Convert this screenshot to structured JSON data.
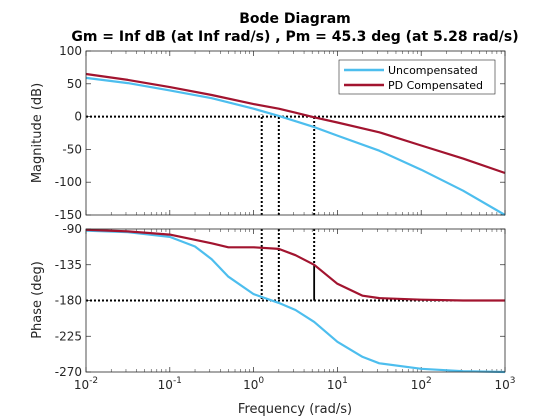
{
  "chart_data": {
    "type": "line",
    "title": "Bode Diagram",
    "subtitle": "Gm = Inf dB (at Inf rad/s) ,  Pm = 45.3 deg (at 5.28 rad/s)",
    "xlabel": "Frequency  (rad/s)",
    "x_scale": "log",
    "xlim": [
      0.01,
      1000
    ],
    "x_ticks": [
      0.01,
      0.1,
      1,
      10,
      100,
      1000
    ],
    "x_tick_labels": [
      {
        "base": "10",
        "exp": "-2"
      },
      {
        "base": "10",
        "exp": "-1"
      },
      {
        "base": "10",
        "exp": "0"
      },
      {
        "base": "10",
        "exp": "1"
      },
      {
        "base": "10",
        "exp": "2"
      },
      {
        "base": "10",
        "exp": "3"
      }
    ],
    "legend": {
      "placement": "top-right",
      "entries": [
        "Uncompensated",
        "PD Compensated"
      ]
    },
    "colors": {
      "uncompensated": "#4dbeee",
      "pd": "#a2142f",
      "axis": "#262626",
      "marker": "#000000"
    },
    "magnitude": {
      "ylabel": "Magnitude (dB)",
      "ylim": [
        -150,
        100
      ],
      "y_ticks": [
        -150,
        -100,
        -50,
        0,
        50,
        100
      ],
      "y_tick_labels": [
        "-150",
        "-100",
        "-50",
        "0",
        "50",
        "100"
      ],
      "series": [
        {
          "name": "Uncompensated",
          "x": [
            0.01,
            0.0316,
            0.1,
            0.316,
            1,
            2,
            3.16,
            5.28,
            10,
            31.6,
            100,
            316,
            1000
          ],
          "values": [
            59,
            51,
            40,
            28,
            12,
            1,
            -7,
            -16,
            -29,
            -52,
            -81,
            -113,
            -150
          ]
        },
        {
          "name": "PD Compensated",
          "x": [
            0.01,
            0.0316,
            0.1,
            0.316,
            1,
            2,
            3.16,
            5.28,
            10,
            31.6,
            100,
            316,
            1000
          ],
          "values": [
            65,
            56,
            45,
            33,
            19,
            12,
            6,
            -1,
            -9,
            -24,
            -44,
            -64,
            -86
          ]
        }
      ],
      "reference_lines": [
        {
          "type": "horizontal",
          "y": 0,
          "style": "dotted"
        },
        {
          "type": "vertical",
          "x": 1.25,
          "from": -150,
          "to": 3,
          "style": "dotted"
        },
        {
          "type": "vertical",
          "x": 2.0,
          "from": -150,
          "to": 0,
          "style": "dotted"
        },
        {
          "type": "vertical",
          "x": 5.28,
          "from": -150,
          "to": 0,
          "style": "dotted"
        }
      ]
    },
    "phase": {
      "ylabel": "Phase (deg)",
      "ylim": [
        -270,
        -90
      ],
      "y_ticks": [
        -270,
        -225,
        -180,
        -135,
        -90
      ],
      "y_tick_labels": [
        "-270",
        "-225",
        "-180",
        "-135",
        "-90"
      ],
      "series": [
        {
          "name": "Uncompensated",
          "x": [
            0.01,
            0.0316,
            0.1,
            0.2,
            0.316,
            0.5,
            1,
            2,
            3.16,
            5.28,
            10,
            20,
            31.6,
            100,
            316,
            1000
          ],
          "values": [
            -92,
            -94,
            -100,
            -112,
            -128,
            -150,
            -172,
            -183,
            -192,
            -207,
            -232,
            -251,
            -259,
            -266,
            -269,
            -270
          ]
        },
        {
          "name": "PD Compensated",
          "x": [
            0.01,
            0.0316,
            0.1,
            0.316,
            0.5,
            1,
            2,
            3.16,
            5.28,
            10,
            20,
            31.6,
            100,
            316,
            1000
          ],
          "values": [
            -91,
            -93,
            -97,
            -108,
            -113,
            -113,
            -115,
            -123,
            -135,
            -159,
            -174,
            -177,
            -179,
            -180,
            -180
          ]
        }
      ],
      "reference_lines": [
        {
          "type": "horizontal",
          "y": -180,
          "style": "dotted"
        },
        {
          "type": "vertical",
          "x": 1.25,
          "from": -90,
          "to": -180,
          "style": "dotted"
        },
        {
          "type": "vertical",
          "x": 2.0,
          "from": -90,
          "to": -180,
          "style": "dotted"
        },
        {
          "type": "vertical",
          "x": 5.28,
          "from": -90,
          "to": -134.7,
          "style": "dotted"
        },
        {
          "type": "vertical",
          "x": 5.28,
          "from": -180,
          "to": -134.7,
          "style": "solid"
        }
      ]
    }
  }
}
